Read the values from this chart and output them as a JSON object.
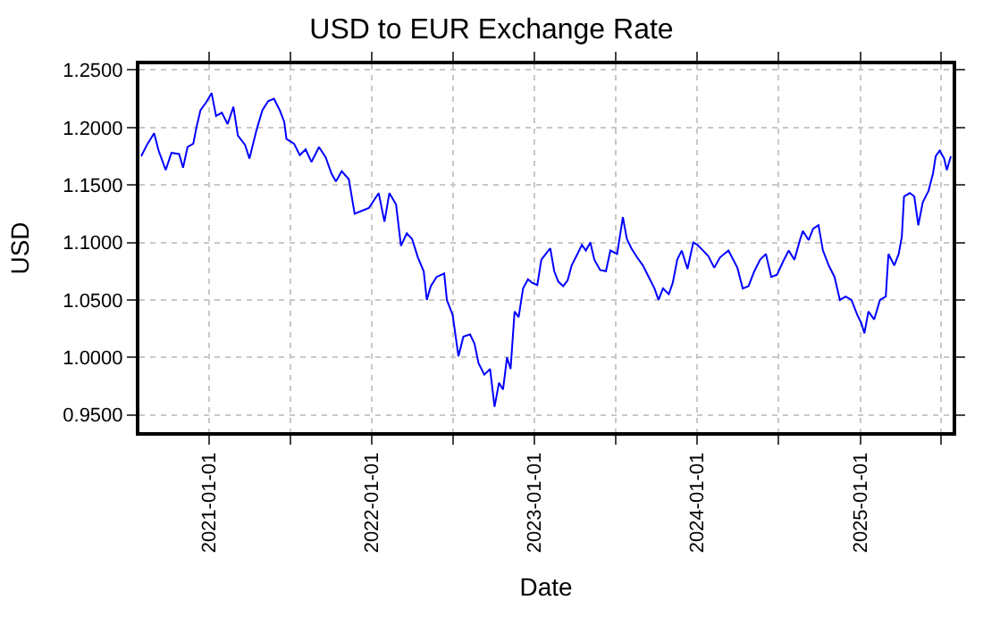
{
  "chart_data": {
    "type": "line",
    "title": "USD to EUR Exchange Rate",
    "xlabel": "Date",
    "ylabel": "USD",
    "x": [
      "2020-08-01",
      "2020-08-14",
      "2020-08-30",
      "2020-09-09",
      "2020-09-25",
      "2020-10-08",
      "2020-10-25",
      "2020-11-03",
      "2020-11-13",
      "2020-11-26",
      "2020-12-03",
      "2020-12-12",
      "2020-12-25",
      "2021-01-06",
      "2021-01-16",
      "2021-01-29",
      "2021-02-11",
      "2021-02-24",
      "2021-03-06",
      "2021-03-22",
      "2021-04-01",
      "2021-04-17",
      "2021-04-30",
      "2021-05-13",
      "2021-05-26",
      "2021-06-08",
      "2021-06-18",
      "2021-06-23",
      "2021-07-10",
      "2021-07-23",
      "2021-08-05",
      "2021-08-18",
      "2021-09-04",
      "2021-09-19",
      "2021-10-02",
      "2021-10-12",
      "2021-10-25",
      "2021-11-10",
      "2021-11-23",
      "2021-12-06",
      "2021-12-25",
      "2022-01-16",
      "2022-01-29",
      "2022-02-09",
      "2022-02-24",
      "2022-03-07",
      "2022-03-20",
      "2022-04-01",
      "2022-04-14",
      "2022-04-27",
      "2022-05-04",
      "2022-05-13",
      "2022-05-26",
      "2022-06-12",
      "2022-06-18",
      "2022-07-01",
      "2022-07-14",
      "2022-07-25",
      "2022-08-09",
      "2022-08-19",
      "2022-08-28",
      "2022-09-10",
      "2022-09-23",
      "2022-10-03",
      "2022-10-13",
      "2022-10-22",
      "2022-10-31",
      "2022-11-08",
      "2022-11-17",
      "2022-11-26",
      "2022-12-06",
      "2022-12-17",
      "2022-12-26",
      "2023-01-07",
      "2023-01-16",
      "2023-01-26",
      "2023-02-05",
      "2023-02-14",
      "2023-02-23",
      "2023-03-06",
      "2023-03-16",
      "2023-03-25",
      "2023-04-07",
      "2023-04-17",
      "2023-04-26",
      "2023-05-06",
      "2023-05-15",
      "2023-05-28",
      "2023-06-10",
      "2023-06-20",
      "2023-07-05",
      "2023-07-18",
      "2023-07-27",
      "2023-08-06",
      "2023-08-19",
      "2023-09-01",
      "2023-09-14",
      "2023-09-27",
      "2023-10-06",
      "2023-10-16",
      "2023-10-29",
      "2023-11-07",
      "2023-11-17",
      "2023-11-27",
      "2023-12-10",
      "2023-12-23",
      "2024-01-01",
      "2024-01-14",
      "2024-01-26",
      "2024-02-08",
      "2024-02-21",
      "2024-03-11",
      "2024-03-31",
      "2024-04-12",
      "2024-04-25",
      "2024-05-08",
      "2024-05-21",
      "2024-06-03",
      "2024-06-15",
      "2024-06-28",
      "2024-07-11",
      "2024-07-24",
      "2024-08-06",
      "2024-08-19",
      "2024-08-25",
      "2024-09-07",
      "2024-09-17",
      "2024-09-29",
      "2024-10-09",
      "2024-10-22",
      "2024-11-04",
      "2024-11-16",
      "2024-11-29",
      "2024-12-12",
      "2024-12-25",
      "2025-01-03",
      "2025-01-10",
      "2025-01-19",
      "2025-02-01",
      "2025-02-14",
      "2025-02-27",
      "2025-03-05",
      "2025-03-18",
      "2025-03-28",
      "2025-04-04",
      "2025-04-09",
      "2025-04-22",
      "2025-05-02",
      "2025-05-11",
      "2025-05-21",
      "2025-06-03",
      "2025-06-13",
      "2025-06-19",
      "2025-06-28",
      "2025-07-08",
      "2025-07-14",
      "2025-07-23"
    ],
    "series": [
      {
        "color": "#0000ff",
        "values": [
          1.175,
          1.185,
          1.195,
          1.18,
          1.163,
          1.178,
          1.177,
          1.165,
          1.183,
          1.186,
          1.2,
          1.215,
          1.222,
          1.23,
          1.21,
          1.213,
          1.203,
          1.218,
          1.193,
          1.185,
          1.173,
          1.198,
          1.215,
          1.223,
          1.225,
          1.215,
          1.205,
          1.19,
          1.186,
          1.176,
          1.181,
          1.17,
          1.183,
          1.174,
          1.16,
          1.153,
          1.162,
          1.155,
          1.125,
          1.127,
          1.13,
          1.143,
          1.118,
          1.143,
          1.133,
          1.097,
          1.108,
          1.103,
          1.087,
          1.075,
          1.05,
          1.062,
          1.07,
          1.073,
          1.05,
          1.037,
          1.001,
          1.018,
          1.02,
          1.012,
          0.995,
          0.985,
          0.99,
          0.957,
          0.978,
          0.972,
          1.0,
          0.99,
          1.04,
          1.035,
          1.06,
          1.068,
          1.065,
          1.063,
          1.085,
          1.09,
          1.095,
          1.075,
          1.066,
          1.062,
          1.067,
          1.08,
          1.09,
          1.098,
          1.093,
          1.1,
          1.085,
          1.076,
          1.075,
          1.093,
          1.09,
          1.122,
          1.103,
          1.095,
          1.087,
          1.08,
          1.07,
          1.06,
          1.05,
          1.06,
          1.055,
          1.065,
          1.085,
          1.093,
          1.077,
          1.1,
          1.098,
          1.093,
          1.088,
          1.078,
          1.087,
          1.093,
          1.078,
          1.06,
          1.062,
          1.075,
          1.085,
          1.09,
          1.07,
          1.072,
          1.083,
          1.093,
          1.085,
          1.103,
          1.11,
          1.102,
          1.112,
          1.115,
          1.093,
          1.08,
          1.07,
          1.05,
          1.053,
          1.05,
          1.037,
          1.03,
          1.021,
          1.04,
          1.033,
          1.05,
          1.053,
          1.09,
          1.08,
          1.09,
          1.105,
          1.14,
          1.143,
          1.14,
          1.115,
          1.135,
          1.145,
          1.16,
          1.175,
          1.18,
          1.173,
          1.163,
          1.175
        ]
      }
    ],
    "xlim": [
      "2020-07-28",
      "2025-07-27"
    ],
    "xticks": [
      {
        "value": "2021-01-01",
        "label": "2021-01-01"
      },
      {
        "value": "2021-07-01",
        "label": null
      },
      {
        "value": "2022-01-01",
        "label": "2022-01-01"
      },
      {
        "value": "2022-07-01",
        "label": null
      },
      {
        "value": "2023-01-01",
        "label": "2023-01-01"
      },
      {
        "value": "2023-07-01",
        "label": null
      },
      {
        "value": "2024-01-01",
        "label": "2024-01-01"
      },
      {
        "value": "2024-07-01",
        "label": null
      },
      {
        "value": "2025-01-01",
        "label": "2025-01-01"
      },
      {
        "value": "2025-07-01",
        "label": null
      }
    ],
    "ylim": [
      0.935,
      1.255
    ],
    "yticks": [
      {
        "value": 0.95,
        "label": "0.9500"
      },
      {
        "value": 1.0,
        "label": "1.0000"
      },
      {
        "value": 1.05,
        "label": "1.0500"
      },
      {
        "value": 1.1,
        "label": "1.1000"
      },
      {
        "value": 1.15,
        "label": "1.1500"
      },
      {
        "value": 1.2,
        "label": "1.2000"
      },
      {
        "value": 1.25,
        "label": "1.2500"
      }
    ],
    "grid": true,
    "marker": "none",
    "line_style": "solid"
  }
}
